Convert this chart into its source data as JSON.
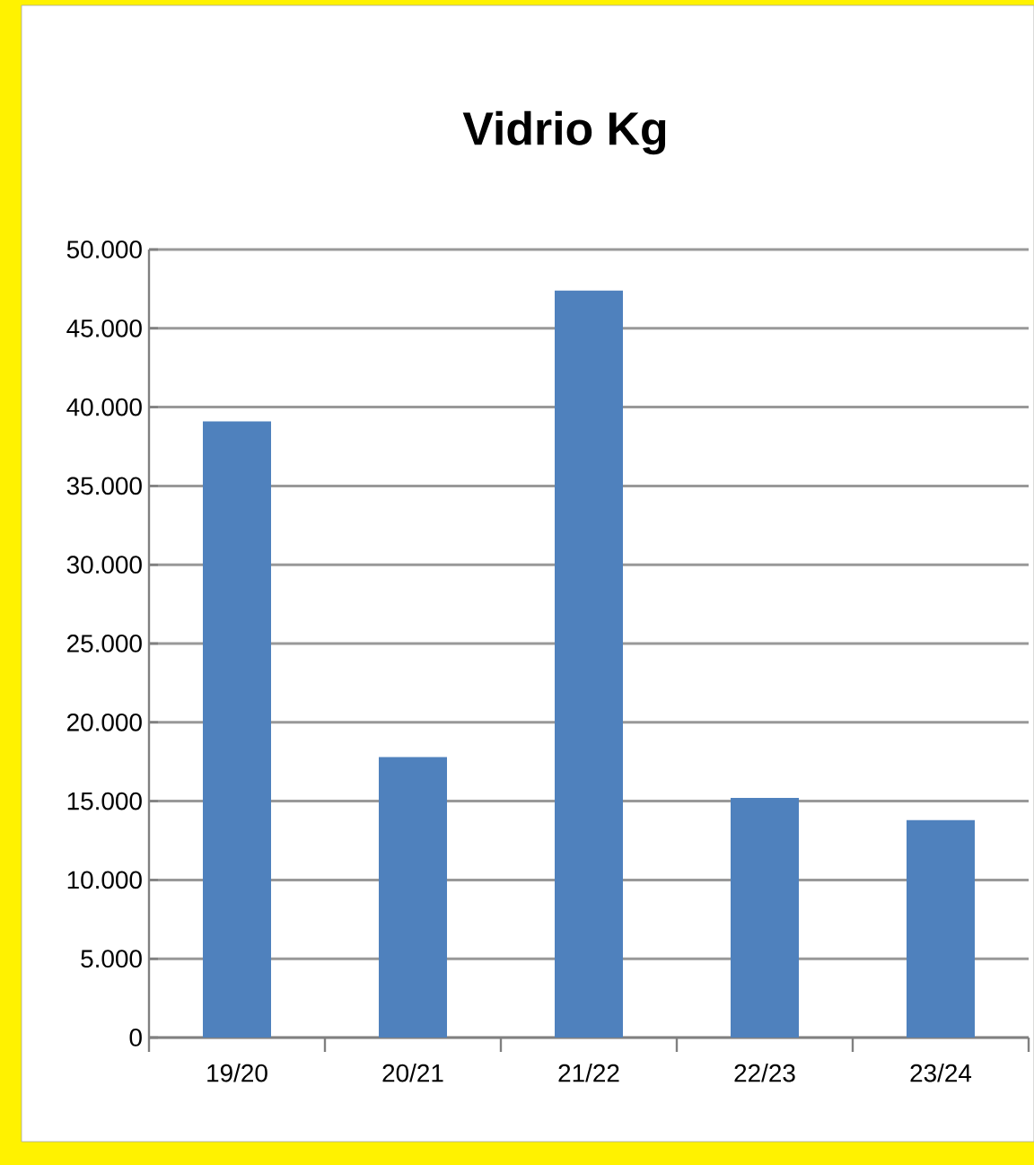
{
  "chart_data": {
    "type": "bar",
    "title": "Vidrio Kg",
    "categories": [
      "19/20",
      "20/21",
      "21/22",
      "22/23",
      "23/24"
    ],
    "values": [
      39100,
      17800,
      47400,
      15200,
      13800
    ],
    "color": "#4f81bd",
    "ylim": [
      0,
      50000
    ],
    "yticks": [
      {
        "value": 0,
        "label": "0"
      },
      {
        "value": 5000,
        "label": "5.000"
      },
      {
        "value": 10000,
        "label": "10.000"
      },
      {
        "value": 15000,
        "label": "15.000"
      },
      {
        "value": 20000,
        "label": "20.000"
      },
      {
        "value": 25000,
        "label": "25.000"
      },
      {
        "value": 30000,
        "label": "30.000"
      },
      {
        "value": 35000,
        "label": "35.000"
      },
      {
        "value": 40000,
        "label": "40.000"
      },
      {
        "value": 45000,
        "label": "45.000"
      },
      {
        "value": 50000,
        "label": "50.000"
      }
    ],
    "grid": "y"
  }
}
